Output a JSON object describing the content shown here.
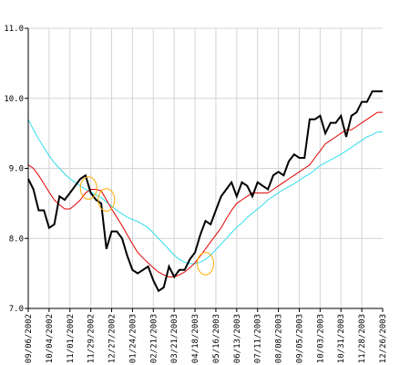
{
  "chart_data": {
    "type": "line",
    "title": "",
    "xlabel": "",
    "ylabel": "",
    "x_tick_labels": [
      "09/06/2002",
      "10/04/2002",
      "11/01/2002",
      "11/29/2002",
      "12/27/2002",
      "01/24/2003",
      "02/21/2003",
      "03/21/2003",
      "04/18/2003",
      "05/16/2003",
      "06/13/2003",
      "07/11/2003",
      "08/08/2003",
      "09/05/2003",
      "10/03/2003",
      "10/31/2003",
      "11/28/2003",
      "12/26/2003"
    ],
    "y_tick_labels": [
      "7.0",
      "8.0",
      "9.0",
      "10.0",
      "11.0"
    ],
    "ylim": [
      7.0,
      11.0
    ],
    "grid": true,
    "legend": "none",
    "x_range": [
      "2002-09-06",
      "2003-12-26"
    ],
    "dates": [
      "2002-09-06",
      "2002-09-13",
      "2002-09-20",
      "2002-09-27",
      "2002-10-04",
      "2002-10-11",
      "2002-10-18",
      "2002-10-25",
      "2002-11-01",
      "2002-11-08",
      "2002-11-15",
      "2002-11-22",
      "2002-11-29",
      "2002-12-06",
      "2002-12-13",
      "2002-12-20",
      "2002-12-27",
      "2003-01-03",
      "2003-01-10",
      "2003-01-17",
      "2003-01-24",
      "2003-01-31",
      "2003-02-07",
      "2003-02-14",
      "2003-02-21",
      "2003-02-28",
      "2003-03-07",
      "2003-03-14",
      "2003-03-21",
      "2003-03-28",
      "2003-04-04",
      "2003-04-11",
      "2003-04-18",
      "2003-04-25",
      "2003-05-02",
      "2003-05-09",
      "2003-05-16",
      "2003-05-23",
      "2003-05-30",
      "2003-06-06",
      "2003-06-13",
      "2003-06-20",
      "2003-06-27",
      "2003-07-04",
      "2003-07-11",
      "2003-07-18",
      "2003-07-25",
      "2003-08-01",
      "2003-08-08",
      "2003-08-15",
      "2003-08-22",
      "2003-08-29",
      "2003-09-05",
      "2003-09-12",
      "2003-09-19",
      "2003-09-26",
      "2003-10-03",
      "2003-10-10",
      "2003-10-17",
      "2003-10-24",
      "2003-10-31",
      "2003-11-07",
      "2003-11-14",
      "2003-11-21",
      "2003-11-28",
      "2003-12-05",
      "2003-12-12",
      "2003-12-19",
      "2003-12-26"
    ],
    "series": [
      {
        "color": "#000000",
        "values": [
          8.85,
          8.7,
          8.4,
          8.4,
          8.15,
          8.2,
          8.6,
          8.55,
          8.65,
          8.75,
          8.85,
          8.9,
          8.65,
          8.55,
          8.5,
          7.85,
          8.1,
          8.1,
          8.0,
          7.75,
          7.55,
          7.5,
          7.55,
          7.6,
          7.4,
          7.25,
          7.3,
          7.6,
          7.45,
          7.55,
          7.55,
          7.7,
          7.8,
          8.05,
          8.25,
          8.2,
          8.4,
          8.6,
          8.7,
          8.8,
          8.6,
          8.8,
          8.75,
          8.6,
          8.8,
          8.75,
          8.7,
          8.9,
          8.95,
          8.9,
          9.1,
          9.2,
          9.15,
          9.15,
          9.7,
          9.7,
          9.75,
          9.5,
          9.65,
          9.65,
          9.75,
          9.45,
          9.75,
          9.8,
          9.95,
          9.95,
          10.1,
          10.1,
          10.1
        ]
      },
      {
        "color": "#e00000",
        "values": [
          9.05,
          9.0,
          8.9,
          8.78,
          8.66,
          8.55,
          8.48,
          8.42,
          8.42,
          8.48,
          8.55,
          8.65,
          8.7,
          8.7,
          8.68,
          8.55,
          8.42,
          8.3,
          8.18,
          8.05,
          7.92,
          7.8,
          7.72,
          7.65,
          7.58,
          7.52,
          7.48,
          7.45,
          7.45,
          7.48,
          7.52,
          7.58,
          7.65,
          7.75,
          7.85,
          7.95,
          8.05,
          8.15,
          8.28,
          8.4,
          8.5,
          8.55,
          8.6,
          8.65,
          8.65,
          8.65,
          8.65,
          8.7,
          8.75,
          8.8,
          8.85,
          8.9,
          8.95,
          9.0,
          9.05,
          9.15,
          9.25,
          9.35,
          9.4,
          9.45,
          9.5,
          9.55,
          9.55,
          9.6,
          9.65,
          9.7,
          9.75,
          9.8,
          9.8
        ]
      },
      {
        "color": "#33ddee",
        "values": [
          9.7,
          9.55,
          9.42,
          9.3,
          9.18,
          9.08,
          9.0,
          8.92,
          8.85,
          8.8,
          8.75,
          8.7,
          8.66,
          8.62,
          8.58,
          8.52,
          8.46,
          8.4,
          8.35,
          8.3,
          8.27,
          8.24,
          8.2,
          8.15,
          8.08,
          8.0,
          7.92,
          7.84,
          7.76,
          7.7,
          7.66,
          7.64,
          7.64,
          7.66,
          7.7,
          7.76,
          7.84,
          7.92,
          8.0,
          8.08,
          8.16,
          8.22,
          8.3,
          8.36,
          8.42,
          8.48,
          8.55,
          8.6,
          8.65,
          8.7,
          8.74,
          8.78,
          8.83,
          8.88,
          8.92,
          8.98,
          9.04,
          9.08,
          9.12,
          9.16,
          9.2,
          9.25,
          9.3,
          9.35,
          9.4,
          9.45,
          9.48,
          9.52,
          9.52
        ]
      }
    ],
    "annotations": [
      {
        "type": "ellipse",
        "color": "#ffaa00",
        "center_date": "2002-11-26",
        "center_value": 8.72,
        "rx_days": 11,
        "ry_value": 0.16
      },
      {
        "type": "ellipse",
        "color": "#ffaa00",
        "center_date": "2002-12-20",
        "center_value": 8.55,
        "rx_days": 11,
        "ry_value": 0.16
      },
      {
        "type": "ellipse",
        "color": "#ffaa00",
        "center_date": "2003-05-02",
        "center_value": 7.64,
        "rx_days": 11,
        "ry_value": 0.16
      }
    ]
  }
}
